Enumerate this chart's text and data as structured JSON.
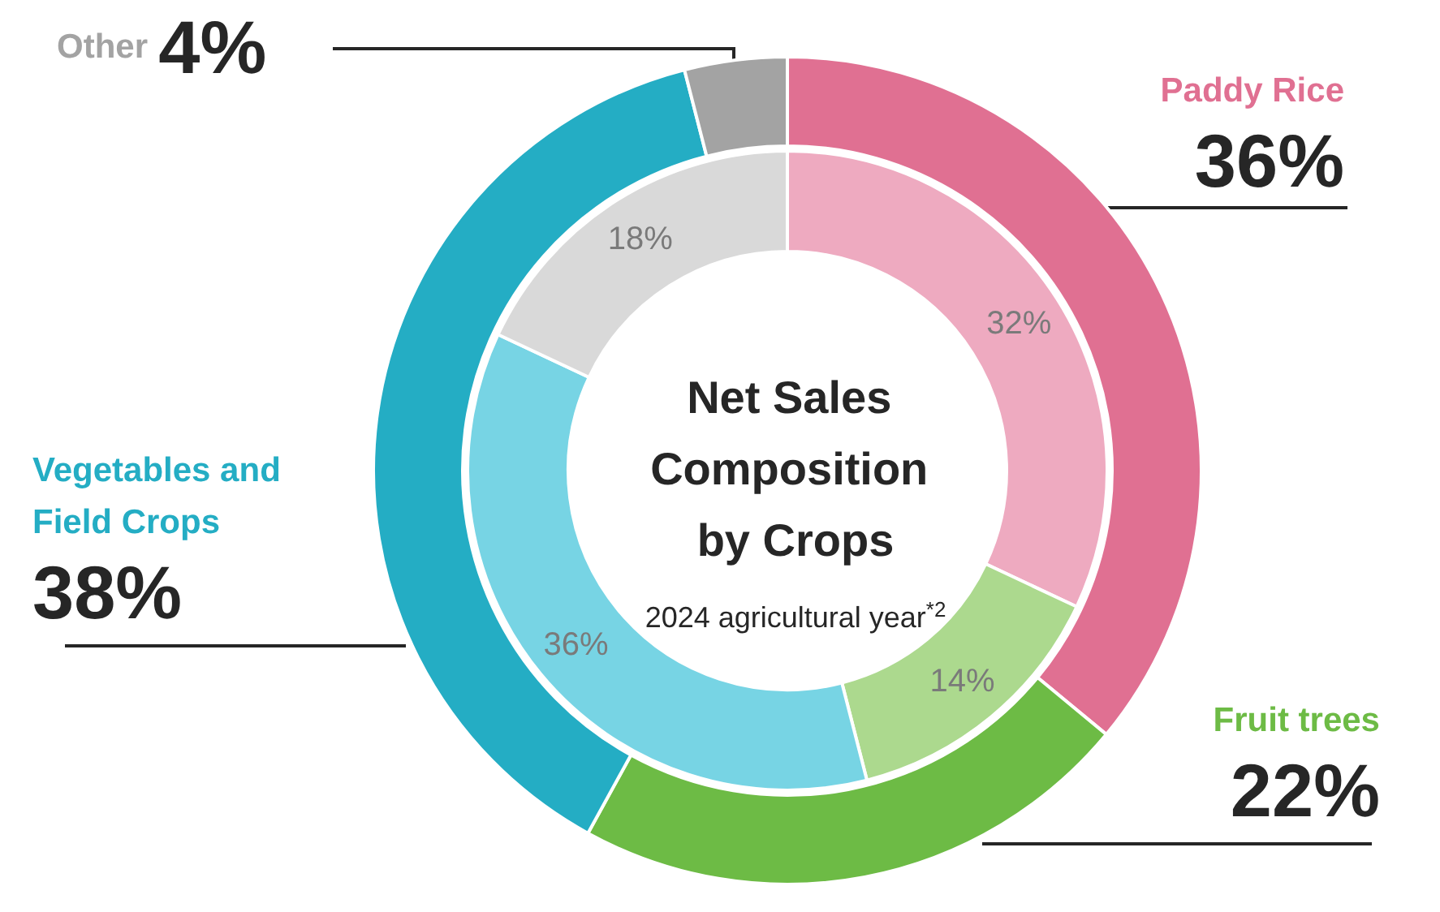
{
  "chart_data": {
    "type": "donut",
    "title": "Net Sales Composition by Crops",
    "subtitle": "2024 agricultural year$^{*2}$",
    "categories": [
      "Paddy Rice",
      "Fruit trees",
      "Vegetables and Field Crops",
      "Other"
    ],
    "series": [
      {
        "values": [
          36,
          22,
          38,
          4
        ],
        "colors": [
          "#e07092",
          "#6dbb45",
          "#24adc4",
          "#a3a3a3"
        ],
        "value_labels": [
          "36%",
          "22%",
          "38%",
          "4%"
        ]
      },
      {
        "values": [
          32,
          14,
          36,
          18
        ],
        "colors": [
          "#eeaac0",
          "#acd98e",
          "#77d4e4",
          "#d9d9d9"
        ],
        "value_labels": [
          "32%",
          "14%",
          "36%",
          "18%"
        ]
      }
    ],
    "legend": false
  }
}
